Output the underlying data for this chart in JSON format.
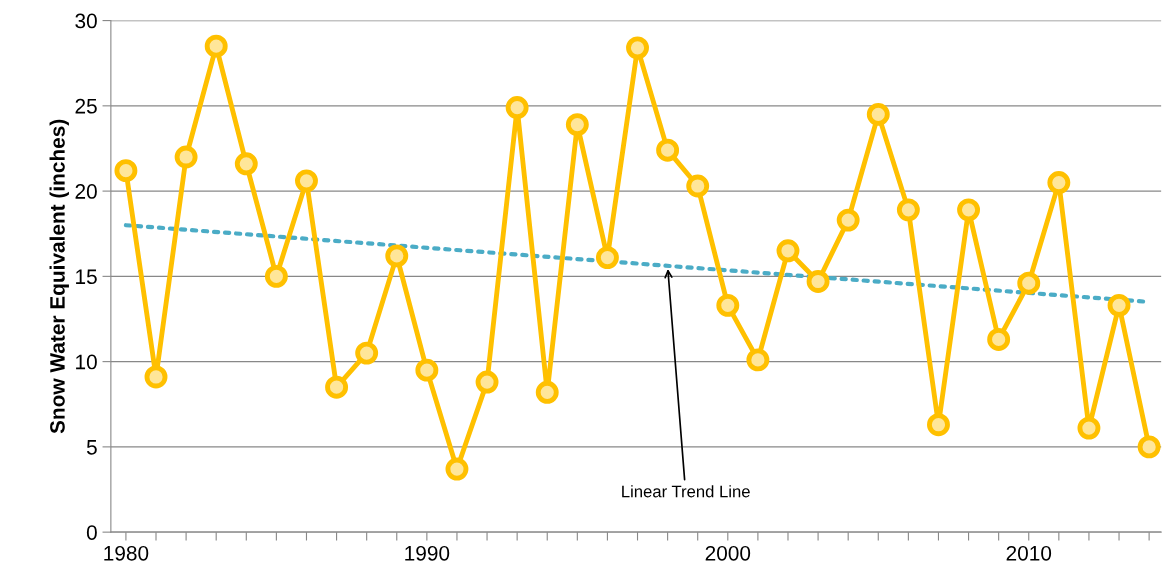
{
  "chart_data": {
    "type": "line",
    "ylabel": "Snow Water Equivalent (inches)",
    "xlim": [
      1979.5,
      2014.4
    ],
    "xticks": [
      1980,
      {
        "value": 1981,
        "label": null
      },
      {
        "value": 1982,
        "label": null
      },
      {
        "value": 1983,
        "label": null
      },
      {
        "value": 1984,
        "label": null
      },
      {
        "value": 1985,
        "label": null
      },
      {
        "value": 1986,
        "label": null
      },
      {
        "value": 1987,
        "label": null
      },
      {
        "value": 1988,
        "label": null
      },
      {
        "value": 1989,
        "label": null
      },
      1990,
      {
        "value": 1991,
        "label": null
      },
      {
        "value": 1992,
        "label": null
      },
      {
        "value": 1993,
        "label": null
      },
      {
        "value": 1994,
        "label": null
      },
      {
        "value": 1995,
        "label": null
      },
      {
        "value": 1996,
        "label": null
      },
      {
        "value": 1997,
        "label": null
      },
      {
        "value": 1998,
        "label": null
      },
      {
        "value": 1999,
        "label": null
      },
      2000,
      {
        "value": 2001,
        "label": null
      },
      {
        "value": 2002,
        "label": null
      },
      {
        "value": 2003,
        "label": null
      },
      {
        "value": 2004,
        "label": null
      },
      {
        "value": 2005,
        "label": null
      },
      {
        "value": 2006,
        "label": null
      },
      {
        "value": 2007,
        "label": null
      },
      {
        "value": 2008,
        "label": null
      },
      {
        "value": 2009,
        "label": null
      },
      2010,
      {
        "value": 2011,
        "label": null
      },
      {
        "value": 2012,
        "label": null
      },
      {
        "value": 2013,
        "label": null
      },
      {
        "value": 2014,
        "label": null
      }
    ],
    "ylim": [
      0,
      30
    ],
    "yticks": [
      0,
      5,
      10,
      15,
      20,
      25,
      30
    ],
    "grid": "y",
    "legend": false,
    "series": [
      {
        "color": "#ffc000",
        "marker": "circle",
        "line_style": "solid",
        "x": [
          1980,
          1981,
          1982,
          1983,
          1984,
          1985,
          1986,
          1987,
          1988,
          1989,
          1990,
          1991,
          1992,
          1993,
          1994,
          1995,
          1996,
          1997,
          1998,
          1999,
          2000,
          2001,
          2002,
          2003,
          2004,
          2005,
          2006,
          2007,
          2008,
          2009,
          2010,
          2011,
          2012,
          2013,
          2014
        ],
        "values": [
          21.2,
          9.1,
          22.0,
          28.5,
          21.6,
          15.0,
          20.6,
          8.5,
          10.5,
          16.2,
          9.5,
          3.7,
          8.8,
          24.9,
          8.2,
          23.9,
          16.1,
          28.4,
          22.4,
          20.3,
          13.3,
          10.1,
          16.5,
          14.7,
          18.3,
          24.5,
          18.9,
          6.3,
          18.9,
          11.3,
          14.6,
          20.5,
          6.1,
          13.3,
          5.0
        ]
      },
      {
        "color": "#4bacc6",
        "marker": "none",
        "line_style": "dotted",
        "x": [
          1980,
          2014
        ],
        "values": [
          18.0,
          13.5
        ]
      }
    ],
    "annotations": [
      {
        "text": "Linear Trend Line",
        "x": 1998,
        "y": 15.6
      }
    ]
  }
}
